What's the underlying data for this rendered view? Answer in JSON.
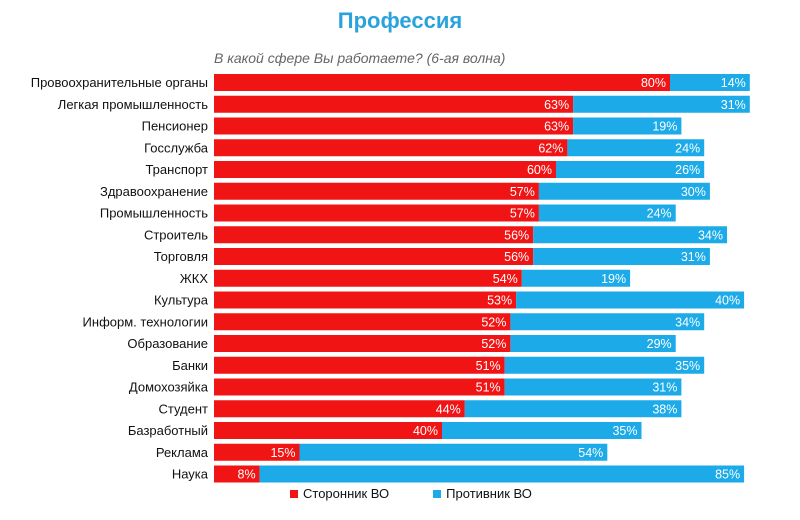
{
  "colors": {
    "supporter": "#f01414",
    "opponent": "#1cabe8",
    "title": "#2aa3dc"
  },
  "chart_data": {
    "type": "bar",
    "orientation": "horizontal-stacked",
    "title": "Профессия",
    "subtitle": "В какой сфере Вы работаете? (6-ая волна)",
    "unit": "%",
    "categories": [
      "Провоохранительные органы",
      "Легкая промышленность",
      "Пенсионер",
      "Госслужба",
      "Транспорт",
      "Здравоохранение",
      "Промышленность",
      "Строитель",
      "Торговля",
      "ЖКХ",
      "Культура",
      "Информ. технологии",
      "Образование",
      "Банки",
      "Домохозяйка",
      "Студент",
      "Базработный",
      "Реклама",
      "Наука"
    ],
    "series": [
      {
        "name": "Сторонник ВО",
        "values": [
          80,
          63,
          63,
          62,
          60,
          57,
          57,
          56,
          56,
          54,
          53,
          52,
          52,
          51,
          51,
          44,
          40,
          15,
          8
        ]
      },
      {
        "name": "Противник ВО",
        "values": [
          14,
          31,
          19,
          24,
          26,
          30,
          24,
          34,
          31,
          19,
          40,
          34,
          29,
          35,
          31,
          38,
          35,
          54,
          85
        ]
      }
    ],
    "xlim": [
      0,
      100
    ]
  }
}
